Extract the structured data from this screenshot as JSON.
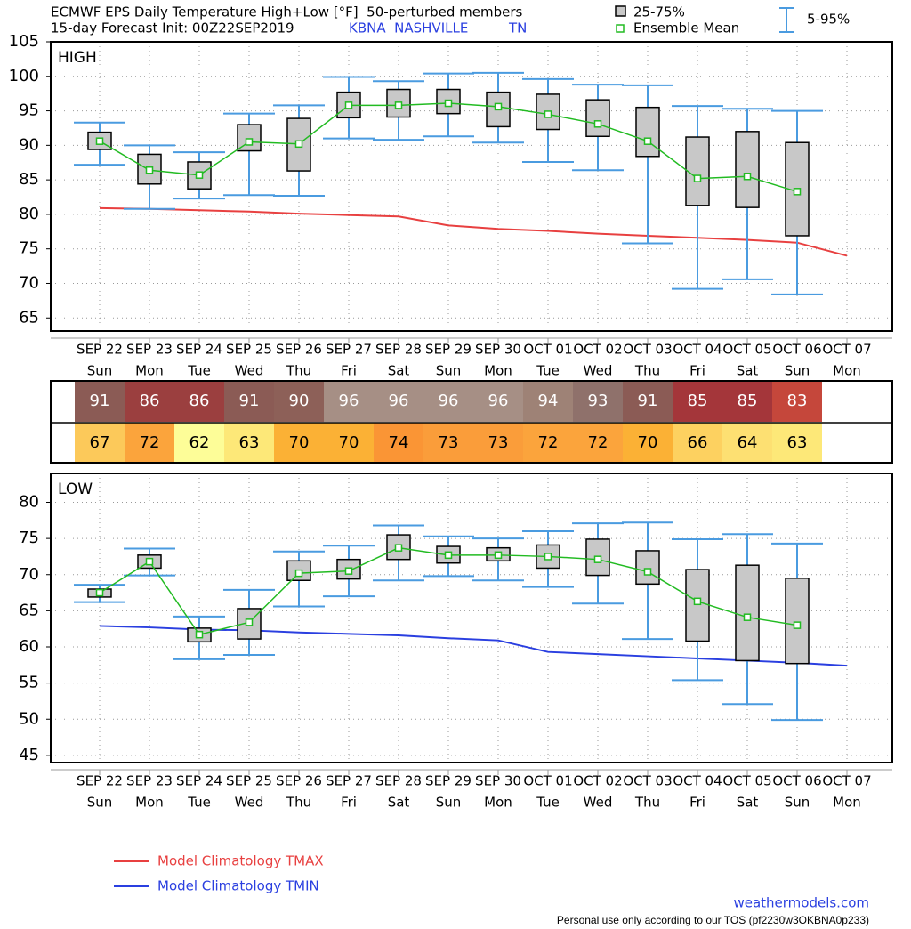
{
  "header": {
    "title": "ECMWF EPS Daily Temperature High+Low [°F]  50-perturbed members",
    "subtitle": "15-day Forecast Init: 00Z22SEP2019",
    "station": "KBNA  NASHVILLE",
    "state": "TN",
    "legend_box": "25-75%",
    "legend_mean": "Ensemble Mean",
    "legend_whisker": "5-95%"
  },
  "chart_data": [
    {
      "type": "box",
      "title": "HIGH",
      "categories": [
        "SEP 22",
        "SEP 23",
        "SEP 24",
        "SEP 25",
        "SEP 26",
        "SEP 27",
        "SEP 28",
        "SEP 29",
        "SEP 30",
        "OCT 01",
        "OCT 02",
        "OCT 03",
        "OCT 04",
        "OCT 05",
        "OCT 06",
        "OCT 07"
      ],
      "days": [
        "Sun",
        "Mon",
        "Tue",
        "Wed",
        "Thu",
        "Fri",
        "Sat",
        "Sun",
        "Mon",
        "Tue",
        "Wed",
        "Thu",
        "Fri",
        "Sat",
        "Sun",
        "Mon"
      ],
      "ylim": [
        63.1,
        105
      ],
      "yticks": [
        65,
        70,
        75,
        80,
        85,
        90,
        95,
        100,
        105
      ],
      "grid": true,
      "box_color": "#c8c8c8",
      "mean_color": "#22bb22",
      "whisker_color": "#4a9be0",
      "whisker_low": [
        87.2,
        80.8,
        82.3,
        82.8,
        82.7,
        91.0,
        90.8,
        91.3,
        90.4,
        87.6,
        86.4,
        75.8,
        69.2,
        70.6,
        68.4,
        null
      ],
      "q1": [
        89.4,
        84.4,
        83.7,
        89.2,
        86.3,
        94.0,
        94.1,
        94.6,
        92.7,
        92.3,
        91.3,
        88.4,
        81.3,
        81.0,
        76.9,
        null
      ],
      "mean": [
        90.6,
        86.4,
        85.7,
        90.5,
        90.2,
        95.8,
        95.8,
        96.1,
        95.6,
        94.5,
        93.1,
        90.6,
        85.2,
        85.5,
        83.3,
        null
      ],
      "q3": [
        91.9,
        88.7,
        87.6,
        93.0,
        93.9,
        97.7,
        98.1,
        98.1,
        97.7,
        97.4,
        96.6,
        95.5,
        91.2,
        92.0,
        90.4,
        null
      ],
      "whisker_high": [
        93.3,
        90.0,
        89.0,
        94.6,
        95.8,
        99.9,
        99.3,
        100.4,
        100.5,
        99.6,
        98.8,
        98.7,
        95.7,
        95.3,
        95.0,
        null
      ],
      "climatology": {
        "name": "Model Climatology TMAX",
        "color": "#e84040",
        "values": [
          80.9,
          80.8,
          80.6,
          80.4,
          80.1,
          79.9,
          79.7,
          78.4,
          77.9,
          77.6,
          77.2,
          76.9,
          76.6,
          76.3,
          75.9,
          74.0
        ]
      }
    },
    {
      "type": "box",
      "title": "LOW",
      "categories": [
        "SEP 22",
        "SEP 23",
        "SEP 24",
        "SEP 25",
        "SEP 26",
        "SEP 27",
        "SEP 28",
        "SEP 29",
        "SEP 30",
        "OCT 01",
        "OCT 02",
        "OCT 03",
        "OCT 04",
        "OCT 05",
        "OCT 06",
        "OCT 07"
      ],
      "days": [
        "Sun",
        "Mon",
        "Tue",
        "Wed",
        "Thu",
        "Fri",
        "Sat",
        "Sun",
        "Mon",
        "Tue",
        "Wed",
        "Thu",
        "Fri",
        "Sat",
        "Sun",
        "Mon"
      ],
      "ylim": [
        44,
        84
      ],
      "yticks": [
        45,
        50,
        55,
        60,
        65,
        70,
        75,
        80
      ],
      "grid": true,
      "box_color": "#c8c8c8",
      "mean_color": "#22bb22",
      "whisker_color": "#4a9be0",
      "whisker_low": [
        66.2,
        69.9,
        58.3,
        58.9,
        65.6,
        67.0,
        69.2,
        69.8,
        69.2,
        68.3,
        66.0,
        61.1,
        55.4,
        52.1,
        49.9,
        null
      ],
      "q1": [
        66.9,
        70.9,
        60.7,
        61.1,
        69.2,
        69.4,
        72.1,
        71.6,
        71.9,
        70.9,
        69.9,
        68.7,
        60.8,
        58.1,
        57.7,
        null
      ],
      "mean": [
        67.5,
        71.8,
        61.7,
        63.4,
        70.2,
        70.5,
        73.7,
        72.7,
        72.7,
        72.5,
        72.1,
        70.4,
        66.3,
        64.1,
        63.0,
        null
      ],
      "q3": [
        68.0,
        72.7,
        62.6,
        65.3,
        71.9,
        72.1,
        75.5,
        73.9,
        73.7,
        74.1,
        74.9,
        73.3,
        70.7,
        71.3,
        69.5,
        null
      ],
      "whisker_high": [
        68.6,
        73.6,
        64.2,
        67.9,
        73.2,
        74.0,
        76.8,
        75.3,
        75.0,
        76.0,
        77.1,
        77.2,
        74.9,
        75.6,
        74.3,
        null
      ],
      "climatology": {
        "name": "Model Climatology TMIN",
        "color": "#2a3fe0",
        "values": [
          62.9,
          62.7,
          62.4,
          62.3,
          62.0,
          61.8,
          61.6,
          61.2,
          60.9,
          59.3,
          59.0,
          58.7,
          58.4,
          58.1,
          57.8,
          57.4
        ]
      }
    }
  ],
  "table": {
    "high": [
      91,
      86,
      86,
      91,
      90,
      96,
      96,
      96,
      96,
      94,
      93,
      91,
      85,
      85,
      83
    ],
    "high_colors": [
      "#8b5b55",
      "#9b3f3f",
      "#9b3f3f",
      "#8b5b55",
      "#8d6058",
      "#a68f85",
      "#a68f85",
      "#a68f85",
      "#a68f85",
      "#9e8276",
      "#8f716b",
      "#8b5b55",
      "#a4363a",
      "#a4363a",
      "#c5473b"
    ],
    "low": [
      67,
      72,
      62,
      63,
      70,
      70,
      74,
      73,
      73,
      72,
      72,
      70,
      66,
      64,
      63
    ],
    "low_colors": [
      "#fcc95a",
      "#fba43c",
      "#fdfd98",
      "#fde878",
      "#fbb135",
      "#fbb135",
      "#fa9535",
      "#fa9d3a",
      "#fa9d3a",
      "#fba43c",
      "#fba43c",
      "#fbb135",
      "#fdd160",
      "#fde072",
      "#fde878"
    ]
  },
  "footer": {
    "site": "weathermodels.com",
    "tos": "Personal use only according to our TOS (pf2230w3OKBNA0p233)"
  }
}
